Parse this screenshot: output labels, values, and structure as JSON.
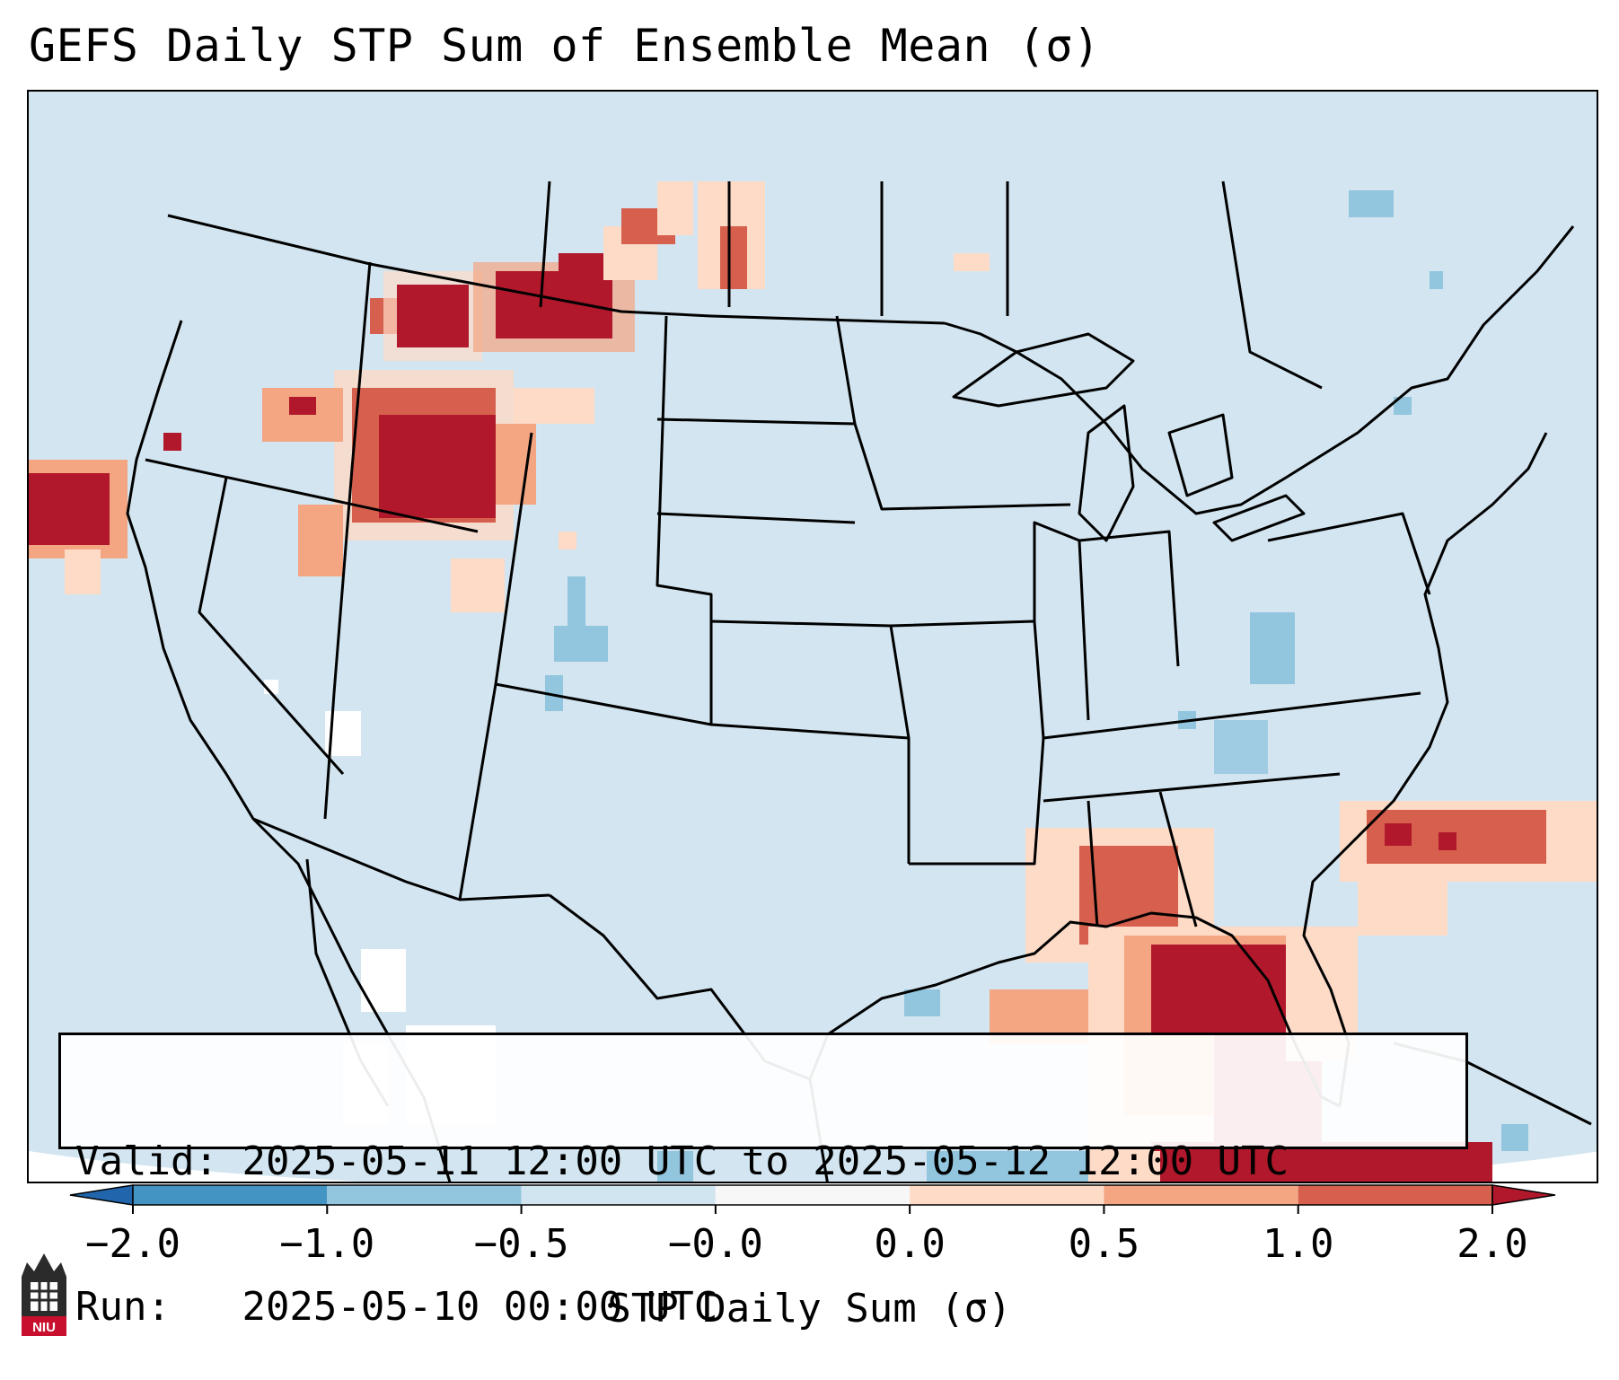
{
  "title": "GEFS Daily STP Sum of Ensemble Mean (σ)",
  "valid_label": "Valid:",
  "valid_text": "2025-05-11 12:00 UTC to 2025-05-12 12:00 UTC",
  "run_label": "Run:",
  "run_text": "2025-05-10 00:00 UTC",
  "colorbar": {
    "title": "STP Daily Sum (σ)",
    "tick_labels": [
      "−2.0",
      "−1.0",
      "−0.5",
      "−0.0",
      "0.0",
      "0.5",
      "1.0",
      "2.0"
    ],
    "bins": [
      {
        "color": "#2166ac",
        "range": "< −2.0"
      },
      {
        "color": "#4393c3",
        "range": "−2.0 to −1.0"
      },
      {
        "color": "#92c5de",
        "range": "−1.0 to −0.5"
      },
      {
        "color": "#d1e5f0",
        "range": "−0.5 to −0.0"
      },
      {
        "color": "#f7f7f7",
        "range": "−0.0 to 0.0"
      },
      {
        "color": "#fddbc7",
        "range": "0.0 to 0.5"
      },
      {
        "color": "#f4a582",
        "range": "0.5 to 1.0"
      },
      {
        "color": "#d6604d",
        "range": "1.0 to 2.0"
      },
      {
        "color": "#b2182b",
        "range": "> 2.0"
      }
    ]
  },
  "logo_text": "NIU",
  "colors": {
    "background": "#d2e5f0",
    "neutral": "#ffffff",
    "light_blue": "#92c5de",
    "light_red": "#fddbc7",
    "medium_red": "#f4a582",
    "red": "#d6604d",
    "dark_red": "#b2182b"
  }
}
